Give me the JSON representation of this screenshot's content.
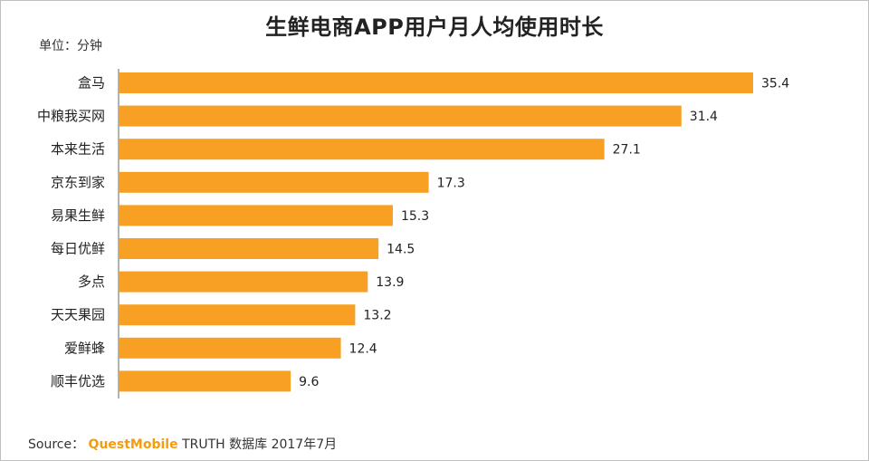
{
  "title": "生鲜电商APP用户月人均使用时长",
  "unit_label": "单位：分钟",
  "source": {
    "prefix": "Source：",
    "brand": "QuestMobile",
    "suffix": " TRUTH 数据库 2017年7月"
  },
  "colors": {
    "bar": "#F7A024"
  },
  "chart_data": {
    "type": "bar",
    "orientation": "horizontal",
    "title": "生鲜电商APP用户月人均使用时长",
    "unit": "单位：分钟",
    "categories": [
      "盒马",
      "中粮我买网",
      "本来生活",
      "京东到家",
      "易果生鲜",
      "每日优鲜",
      "多点",
      "天天果园",
      "爱鲜蜂",
      "顺丰优选"
    ],
    "values": [
      35.4,
      31.4,
      27.1,
      17.3,
      15.3,
      14.5,
      13.9,
      13.2,
      12.4,
      9.6
    ],
    "value_labels": [
      "35.4",
      "31.4",
      "27.1",
      "17.3",
      "15.3",
      "14.5",
      "13.9",
      "13.2",
      "12.4",
      "9.6"
    ],
    "xlim": [
      0,
      35.4
    ],
    "grid": false,
    "data_labels": true
  }
}
